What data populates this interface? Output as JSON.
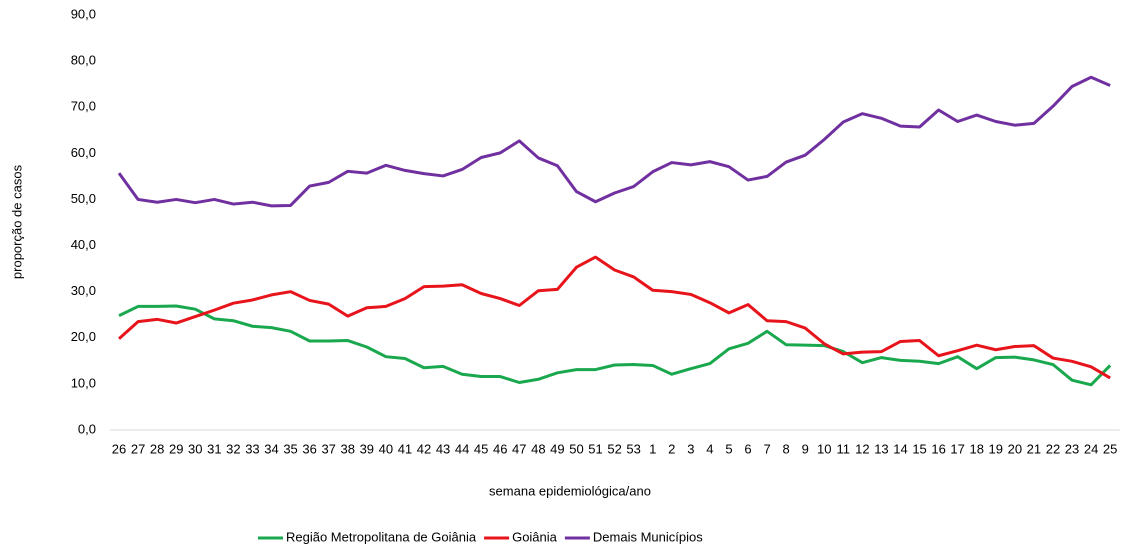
{
  "chart_data": {
    "type": "line",
    "y_label": "proporção de casos",
    "x_label": "semana epidemiológica/ano",
    "categories": [
      "26",
      "27",
      "28",
      "29",
      "30",
      "31",
      "32",
      "33",
      "34",
      "35",
      "36",
      "37",
      "38",
      "39",
      "40",
      "41",
      "42",
      "43",
      "44",
      "45",
      "46",
      "47",
      "48",
      "49",
      "50",
      "51",
      "52",
      "53",
      "1",
      "2",
      "3",
      "4",
      "5",
      "6",
      "7",
      "8",
      "9",
      "10",
      "11",
      "12",
      "13",
      "14",
      "15",
      "16",
      "17",
      "18",
      "19",
      "20",
      "21",
      "22",
      "23",
      "24",
      "25"
    ],
    "series": [
      {
        "name": "Região Metropolitana de Goiânia",
        "color": "#1aa84e",
        "values": [
          24.8,
          26.8,
          26.8,
          26.9,
          26.2,
          24.1,
          23.7,
          22.5,
          22.2,
          21.4,
          19.3,
          19.3,
          19.4,
          18.0,
          15.9,
          15.5,
          13.5,
          13.8,
          12.1,
          11.6,
          11.6,
          10.3,
          11.0,
          12.4,
          13.1,
          13.1,
          14.1,
          14.2,
          14.0,
          12.1,
          13.3,
          14.4,
          17.6,
          18.8,
          21.4,
          18.5,
          18.4,
          18.3,
          17.0,
          14.6,
          15.7,
          15.1,
          14.9,
          14.4,
          15.9,
          13.3,
          15.7,
          15.8,
          15.2,
          14.2,
          10.8,
          9.8,
          14.0
        ]
      },
      {
        "name": "Goiânia",
        "color": "#e8141b",
        "values": [
          19.8,
          23.5,
          24.0,
          23.2,
          24.6,
          26.0,
          27.5,
          28.2,
          29.3,
          30.0,
          28.1,
          27.3,
          24.7,
          26.5,
          26.8,
          28.5,
          31.1,
          31.2,
          31.5,
          29.6,
          28.5,
          27.0,
          30.2,
          30.5,
          35.3,
          37.5,
          34.7,
          33.2,
          30.3,
          30.0,
          29.4,
          27.6,
          25.4,
          27.2,
          23.7,
          23.5,
          22.1,
          18.7,
          16.5,
          16.9,
          17.0,
          19.2,
          19.4,
          16.1,
          17.2,
          18.4,
          17.4,
          18.1,
          18.3,
          15.6,
          14.9,
          13.7,
          11.3
        ]
      },
      {
        "name": "Demais Municípios",
        "color": "#7030a0",
        "values": [
          55.7,
          50.0,
          49.4,
          50.0,
          49.3,
          50.0,
          49.0,
          49.4,
          48.6,
          48.7,
          52.9,
          53.7,
          56.1,
          55.7,
          57.4,
          56.3,
          55.6,
          55.1,
          56.5,
          59.1,
          60.1,
          62.7,
          59.0,
          57.3,
          51.7,
          49.5,
          51.4,
          52.8,
          56.0,
          58.0,
          57.5,
          58.2,
          57.1,
          54.2,
          55.0,
          58.1,
          59.6,
          63.0,
          66.8,
          68.6,
          67.6,
          65.9,
          65.7,
          69.4,
          66.9,
          68.3,
          66.9,
          66.1,
          66.5,
          70.2,
          74.5,
          76.5,
          74.7
        ]
      }
    ],
    "ylim": [
      0,
      90
    ],
    "yticks": [
      {
        "value": 0,
        "label": "0,0"
      },
      {
        "value": 10,
        "label": "10,0"
      },
      {
        "value": 20,
        "label": "20,0"
      },
      {
        "value": 30,
        "label": "30,0"
      },
      {
        "value": 40,
        "label": "40,0"
      },
      {
        "value": 50,
        "label": "50,0"
      },
      {
        "value": 60,
        "label": "60,0"
      },
      {
        "value": 70,
        "label": "70,0"
      },
      {
        "value": 80,
        "label": "80,0"
      },
      {
        "value": 90,
        "label": "90,0"
      }
    ],
    "legend": "bottom"
  }
}
